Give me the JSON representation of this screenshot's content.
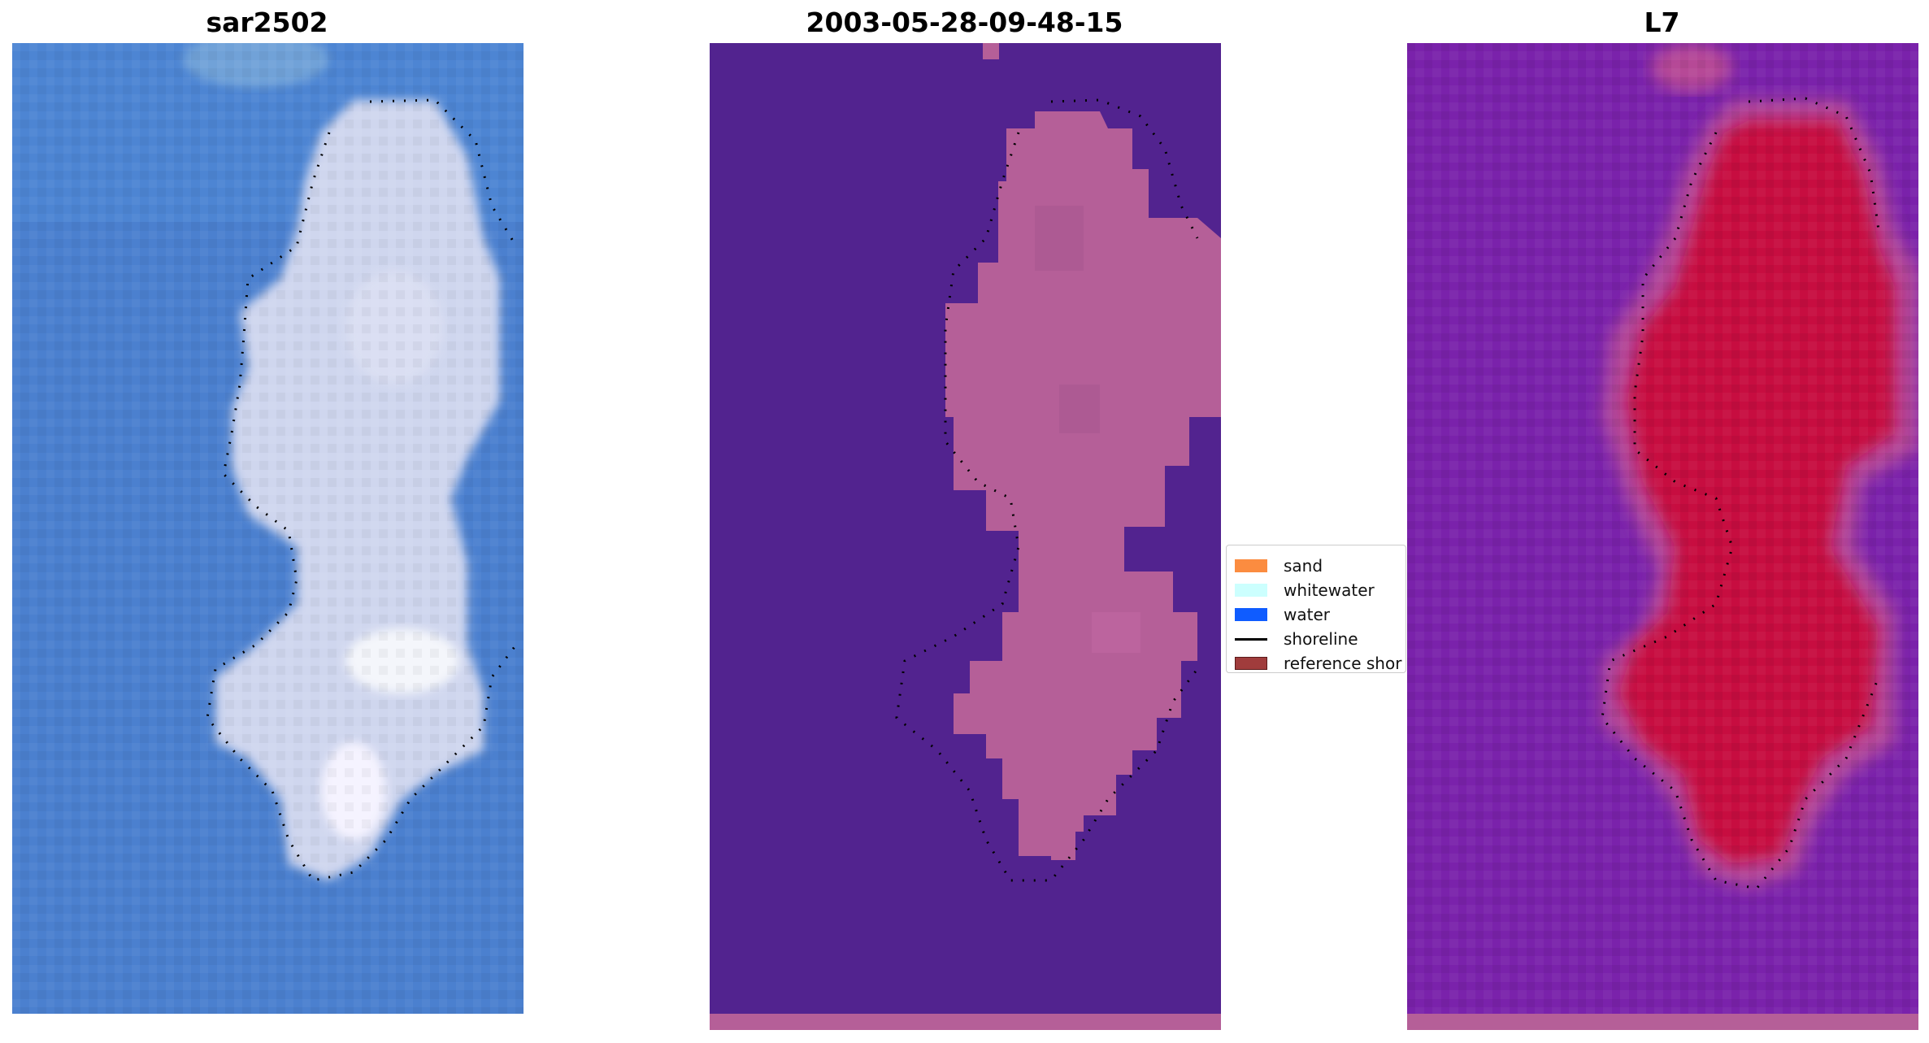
{
  "panels": [
    {
      "title": "sar2502"
    },
    {
      "title": "2003-05-28-09-48-15"
    },
    {
      "title": "L7"
    }
  ],
  "legend": {
    "items": [
      {
        "label": "sand",
        "color": "#fb8c40",
        "kind": "patch"
      },
      {
        "label": "whitewater",
        "color": "#ccfffe",
        "kind": "patch"
      },
      {
        "label": "water",
        "color": "#0f5cff",
        "kind": "patch"
      },
      {
        "label": "shoreline",
        "color": "#000000",
        "kind": "line"
      },
      {
        "label": "reference shor",
        "color": "#a03c3c",
        "kind": "patch"
      }
    ]
  },
  "colors": {
    "rgb_water": "#4a7fd0",
    "rgb_island": "#dfe3f4",
    "class_background": "#52238f",
    "class_island": "#b55f98",
    "index_background": "#7a22ab",
    "index_island": "#c7093f"
  }
}
